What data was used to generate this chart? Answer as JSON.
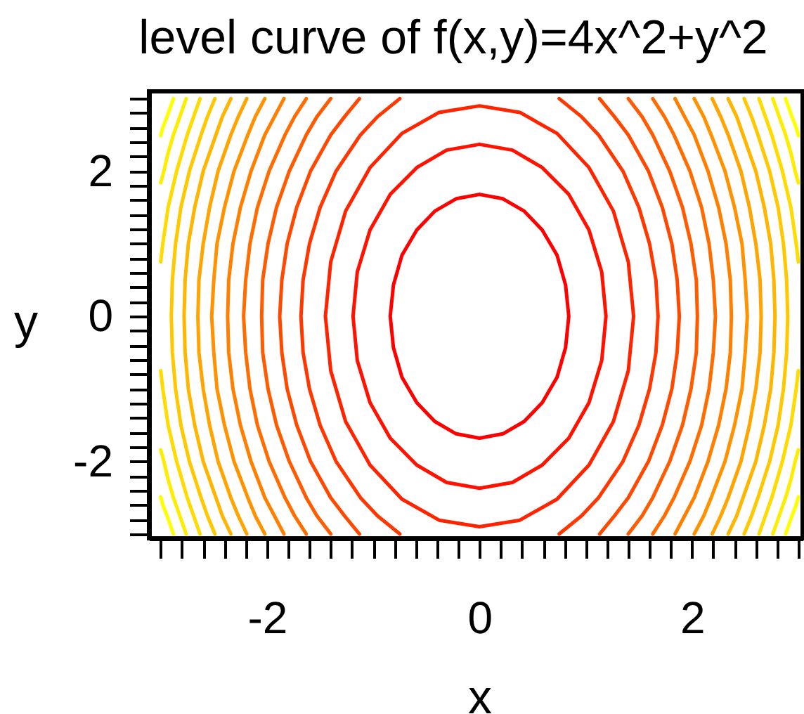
{
  "chart_data": {
    "type": "line",
    "title": "level curve of f(x,y)=4x^2+y^2",
    "xlabel": "x",
    "ylabel": "y",
    "xlim": [
      -3.11,
      3.04
    ],
    "ylim": [
      -3.06,
      3.1
    ],
    "xticks": [
      {
        "value": -3,
        "label": null
      },
      {
        "value": -2.8,
        "label": null
      },
      {
        "value": -2.6,
        "label": null
      },
      {
        "value": -2.4,
        "label": null
      },
      {
        "value": -2.2,
        "label": null
      },
      -2,
      {
        "value": -1.8,
        "label": null
      },
      {
        "value": -1.6,
        "label": null
      },
      {
        "value": -1.4,
        "label": null
      },
      {
        "value": -1.2,
        "label": null
      },
      {
        "value": -1,
        "label": null
      },
      {
        "value": -0.8,
        "label": null
      },
      {
        "value": -0.6,
        "label": null
      },
      {
        "value": -0.4,
        "label": null
      },
      {
        "value": -0.2,
        "label": null
      },
      0,
      {
        "value": 0.2,
        "label": null
      },
      {
        "value": 0.4,
        "label": null
      },
      {
        "value": 0.6,
        "label": null
      },
      {
        "value": 0.8,
        "label": null
      },
      {
        "value": 1,
        "label": null
      },
      {
        "value": 1.2,
        "label": null
      },
      {
        "value": 1.4,
        "label": null
      },
      {
        "value": 1.6,
        "label": null
      },
      {
        "value": 1.8,
        "label": null
      },
      2,
      {
        "value": 2.2,
        "label": null
      },
      {
        "value": 2.4,
        "label": null
      },
      {
        "value": 2.6,
        "label": null
      },
      {
        "value": 2.8,
        "label": null
      },
      {
        "value": 3,
        "label": null
      }
    ],
    "yticks": [
      {
        "value": -3,
        "label": null
      },
      {
        "value": -2.8,
        "label": null
      },
      {
        "value": -2.6,
        "label": null
      },
      {
        "value": -2.4,
        "label": null
      },
      {
        "value": -2.2,
        "label": null
      },
      -2,
      {
        "value": -1.8,
        "label": null
      },
      {
        "value": -1.6,
        "label": null
      },
      {
        "value": -1.4,
        "label": null
      },
      {
        "value": -1.2,
        "label": null
      },
      {
        "value": -1,
        "label": null
      },
      {
        "value": -0.8,
        "label": null
      },
      {
        "value": -0.6,
        "label": null
      },
      {
        "value": -0.4,
        "label": null
      },
      {
        "value": -0.2,
        "label": null
      },
      0,
      {
        "value": 0.2,
        "label": null
      },
      {
        "value": 0.4,
        "label": null
      },
      {
        "value": 0.6,
        "label": null
      },
      {
        "value": 0.8,
        "label": null
      },
      {
        "value": 1,
        "label": null
      },
      {
        "value": 1.2,
        "label": null
      },
      {
        "value": 1.4,
        "label": null
      },
      {
        "value": 1.6,
        "label": null
      },
      {
        "value": 1.8,
        "label": null
      },
      2,
      {
        "value": 2.2,
        "label": null
      },
      {
        "value": 2.4,
        "label": null
      },
      {
        "value": 2.6,
        "label": null
      },
      {
        "value": 2.8,
        "label": null
      },
      {
        "value": 3,
        "label": null
      }
    ],
    "series": [
      {
        "color": "#ff0000",
        "x": [
          0,
          0.22,
          0.42,
          0.59,
          0.73,
          0.81,
          0.84,
          0.81,
          0.73,
          0.59,
          0.42,
          0.22,
          0,
          null,
          0,
          -0.22,
          -0.42,
          -0.59,
          -0.73,
          -0.81,
          -0.84,
          -0.81,
          -0.73,
          -0.59,
          -0.42,
          -0.22,
          0
        ],
        "values": [
          -1.68,
          -1.62,
          -1.45,
          -1.19,
          -0.84,
          -0.43,
          0,
          0.43,
          0.84,
          1.19,
          1.45,
          1.62,
          1.68,
          null,
          -1.68,
          -1.62,
          -1.45,
          -1.19,
          -0.84,
          -0.43,
          0,
          0.43,
          0.84,
          1.19,
          1.45,
          1.62,
          1.68
        ]
      },
      {
        "color": "#ff1200",
        "x": [
          0,
          0.31,
          0.59,
          0.84,
          1.03,
          1.15,
          1.19,
          1.15,
          1.03,
          0.84,
          0.59,
          0.31,
          0,
          null,
          0,
          -0.31,
          -0.59,
          -0.84,
          -1.03,
          -1.15,
          -1.19,
          -1.15,
          -1.03,
          -0.84,
          -0.59,
          -0.31,
          0
        ],
        "values": [
          -2.37,
          -2.29,
          -2.05,
          -1.68,
          -1.19,
          -0.61,
          0,
          0.61,
          1.19,
          1.68,
          2.05,
          2.29,
          2.37,
          null,
          -2.37,
          -2.29,
          -2.05,
          -1.68,
          -1.19,
          -0.61,
          0,
          0.61,
          1.19,
          1.68,
          2.05,
          2.29,
          2.37
        ]
      },
      {
        "color": "#ff2400",
        "x": [
          0,
          0.38,
          0.73,
          1.03,
          1.26,
          1.4,
          1.45,
          1.4,
          1.26,
          1.03,
          0.73,
          0.38,
          0,
          null,
          0,
          -0.38,
          -0.73,
          -1.03,
          -1.26,
          -1.4,
          -1.45,
          -1.4,
          -1.26,
          -1.03,
          -0.73,
          -0.38,
          0
        ],
        "values": [
          -2.9,
          -2.81,
          -2.52,
          -2.05,
          -1.45,
          -0.75,
          0,
          0.75,
          1.45,
          2.05,
          2.52,
          2.81,
          2.9,
          null,
          -2.9,
          -2.81,
          -2.52,
          -2.05,
          -1.45,
          -0.75,
          0,
          0.75,
          1.45,
          2.05,
          2.52,
          2.81,
          2.9
        ]
      },
      {
        "color": "#ff3700",
        "x": [
          0.75,
          0.96,
          1.12,
          1.35,
          1.5,
          1.6,
          1.66,
          1.68,
          1.66,
          1.6,
          1.5,
          1.35,
          1.12,
          0.96,
          0.75,
          null,
          -0.75,
          -0.96,
          -1.12,
          -1.35,
          -1.5,
          -1.6,
          -1.66,
          -1.68,
          -1.66,
          -1.6,
          -1.5,
          -1.35,
          -1.12,
          -0.96,
          -0.75
        ],
        "values": [
          -3,
          -2.75,
          -2.5,
          -2,
          -1.5,
          -1,
          -0.5,
          0,
          0.5,
          1,
          1.5,
          2,
          2.5,
          2.75,
          3,
          null,
          -3,
          -2.75,
          -2.5,
          -2,
          -1.5,
          -1,
          -0.5,
          0,
          0.5,
          1,
          1.5,
          2,
          2.5,
          2.75,
          3
        ]
      },
      {
        "color": "#ff4900",
        "x": [
          1.13,
          1.27,
          1.4,
          1.59,
          1.72,
          1.81,
          1.86,
          1.88,
          1.86,
          1.81,
          1.72,
          1.59,
          1.4,
          1.27,
          1.13,
          null,
          -1.13,
          -1.27,
          -1.4,
          -1.59,
          -1.72,
          -1.81,
          -1.86,
          -1.88,
          -1.86,
          -1.81,
          -1.72,
          -1.59,
          -1.4,
          -1.27,
          -1.13
        ],
        "values": [
          -3,
          -2.75,
          -2.5,
          -2,
          -1.5,
          -1,
          -0.5,
          0,
          0.5,
          1,
          1.5,
          2,
          2.5,
          2.75,
          3,
          null,
          -3,
          -2.75,
          -2.5,
          -2,
          -1.5,
          -1,
          -0.5,
          0,
          0.5,
          1,
          1.5,
          2,
          2.5,
          2.75,
          3
        ]
      },
      {
        "color": "#ff5b00",
        "x": [
          1.4,
          1.53,
          1.63,
          1.79,
          1.91,
          1.99,
          2.04,
          2.05,
          2.04,
          1.99,
          1.91,
          1.79,
          1.63,
          1.53,
          1.4,
          null,
          -1.4,
          -1.53,
          -1.63,
          -1.79,
          -1.91,
          -1.99,
          -2.04,
          -2.05,
          -2.04,
          -1.99,
          -1.91,
          -1.79,
          -1.63,
          -1.53,
          -1.4
        ],
        "values": [
          -3,
          -2.75,
          -2.5,
          -2,
          -1.5,
          -1,
          -0.5,
          0,
          0.5,
          1,
          1.5,
          2,
          2.5,
          2.75,
          3,
          null,
          -3,
          -2.75,
          -2.5,
          -2,
          -1.5,
          -1,
          -0.5,
          0,
          0.5,
          1,
          1.5,
          2,
          2.5,
          2.75,
          3
        ]
      },
      {
        "color": "#ff6d00",
        "x": [
          1.63,
          1.74,
          1.83,
          1.98,
          2.09,
          2.16,
          2.2,
          2.22,
          2.2,
          2.16,
          2.09,
          1.98,
          1.83,
          1.74,
          1.63,
          null,
          -1.63,
          -1.74,
          -1.83,
          -1.98,
          -2.09,
          -2.16,
          -2.2,
          -2.22,
          -2.2,
          -2.16,
          -2.09,
          -1.98,
          -1.83,
          -1.74,
          -1.63
        ],
        "values": [
          -3,
          -2.75,
          -2.5,
          -2,
          -1.5,
          -1,
          -0.5,
          0,
          0.5,
          1,
          1.5,
          2,
          2.5,
          2.75,
          3,
          null,
          -3,
          -2.75,
          -2.5,
          -2,
          -1.5,
          -1,
          -0.5,
          0,
          0.5,
          1,
          1.5,
          2,
          2.5,
          2.75,
          3
        ]
      },
      {
        "color": "#ff8000",
        "x": [
          1.84,
          1.93,
          2.02,
          2.15,
          2.25,
          2.32,
          2.36,
          2.37,
          2.36,
          2.32,
          2.25,
          2.15,
          2.02,
          1.93,
          1.84,
          null,
          -1.84,
          -1.93,
          -2.02,
          -2.15,
          -2.25,
          -2.32,
          -2.36,
          -2.37,
          -2.36,
          -2.32,
          -2.25,
          -2.15,
          -2.02,
          -1.93,
          -1.84
        ],
        "values": [
          -3,
          -2.75,
          -2.5,
          -2,
          -1.5,
          -1,
          -0.5,
          0,
          0.5,
          1,
          1.5,
          2,
          2.5,
          2.75,
          3,
          null,
          -3,
          -2.75,
          -2.5,
          -2,
          -1.5,
          -1,
          -0.5,
          0,
          0.5,
          1,
          1.5,
          2,
          2.5,
          2.75,
          3
        ]
      },
      {
        "color": "#ff9200",
        "x": [
          2.02,
          2.11,
          2.18,
          2.31,
          2.4,
          2.47,
          2.5,
          2.52,
          2.5,
          2.47,
          2.4,
          2.31,
          2.18,
          2.11,
          2.02,
          null,
          -2.02,
          -2.11,
          -2.18,
          -2.31,
          -2.4,
          -2.47,
          -2.5,
          -2.52,
          -2.5,
          -2.47,
          -2.4,
          -2.31,
          -2.18,
          -2.11,
          -2.02
        ],
        "values": [
          -3,
          -2.75,
          -2.5,
          -2,
          -1.5,
          -1,
          -0.5,
          0,
          0.5,
          1,
          1.5,
          2,
          2.5,
          2.75,
          3,
          null,
          -3,
          -2.75,
          -2.5,
          -2,
          -1.5,
          -1,
          -0.5,
          0,
          0.5,
          1,
          1.5,
          2,
          2.5,
          2.75,
          3
        ]
      },
      {
        "color": "#ffa400",
        "x": [
          2.19,
          2.27,
          2.34,
          2.46,
          2.54,
          2.6,
          2.64,
          2.65,
          2.64,
          2.6,
          2.54,
          2.46,
          2.34,
          2.27,
          2.19,
          null,
          -2.19,
          -2.27,
          -2.34,
          -2.46,
          -2.54,
          -2.6,
          -2.64,
          -2.65,
          -2.64,
          -2.6,
          -2.54,
          -2.46,
          -2.34,
          -2.27,
          -2.19
        ],
        "values": [
          -3,
          -2.75,
          -2.5,
          -2,
          -1.5,
          -1,
          -0.5,
          0,
          0.5,
          1,
          1.5,
          2,
          2.5,
          2.75,
          3,
          null,
          -3,
          -2.75,
          -2.5,
          -2,
          -1.5,
          -1,
          -0.5,
          0,
          0.5,
          1,
          1.5,
          2,
          2.5,
          2.75,
          3
        ]
      },
      {
        "color": "#ffb600",
        "x": [
          2.34,
          2.42,
          2.48,
          2.6,
          2.68,
          2.74,
          2.77,
          2.78,
          2.77,
          2.74,
          2.68,
          2.6,
          2.48,
          2.42,
          2.34,
          null,
          -2.34,
          -2.42,
          -2.48,
          -2.6,
          -2.68,
          -2.74,
          -2.77,
          -2.78,
          -2.77,
          -2.74,
          -2.68,
          -2.6,
          -2.48,
          -2.42,
          -2.34
        ],
        "values": [
          -3,
          -2.75,
          -2.5,
          -2,
          -1.5,
          -1,
          -0.5,
          0,
          0.5,
          1,
          1.5,
          2,
          2.5,
          2.75,
          3,
          null,
          -3,
          -2.75,
          -2.5,
          -2,
          -1.5,
          -1,
          -0.5,
          0,
          0.5,
          1,
          1.5,
          2,
          2.5,
          2.75,
          3
        ]
      },
      {
        "color": "#ffc800",
        "x": [
          2.49,
          2.56,
          2.62,
          2.73,
          2.81,
          2.86,
          2.89,
          2.9,
          2.89,
          2.86,
          2.81,
          2.73,
          2.62,
          2.56,
          2.49,
          null,
          -2.49,
          -2.56,
          -2.62,
          -2.73,
          -2.81,
          -2.86,
          -2.89,
          -2.9,
          -2.89,
          -2.86,
          -2.81,
          -2.73,
          -2.62,
          -2.56,
          -2.49
        ],
        "values": [
          -3,
          -2.75,
          -2.5,
          -2,
          -1.5,
          -1,
          -0.5,
          0,
          0.5,
          1,
          1.5,
          2,
          2.5,
          2.75,
          3,
          null,
          -3,
          -2.75,
          -2.5,
          -2,
          -1.5,
          -1,
          -0.5,
          0,
          0.5,
          1,
          1.5,
          2,
          2.5,
          2.75,
          3
        ]
      },
      {
        "color": "#ffdb00",
        "x": [
          2.63,
          2.69,
          2.75,
          2.85,
          2.93,
          2.98,
          3,
          null,
          2.63,
          2.69,
          2.75,
          2.85,
          2.93,
          2.98,
          3,
          null,
          -2.63,
          -2.69,
          -2.75,
          -2.85,
          -2.93,
          -2.98,
          -3,
          null,
          -2.63,
          -2.69,
          -2.75,
          -2.85,
          -2.93,
          -2.98,
          -3
        ],
        "values": [
          3,
          2.75,
          2.5,
          2,
          1.5,
          1,
          0.75,
          null,
          -3,
          -2.75,
          -2.5,
          -2,
          -1.5,
          -1,
          -0.75,
          null,
          3,
          2.75,
          2.5,
          2,
          1.5,
          1,
          0.75,
          null,
          -3,
          -2.75,
          -2.5,
          -2,
          -1.5,
          -1,
          -0.75
        ]
      },
      {
        "color": "#ffed00",
        "x": [
          2.76,
          2.82,
          2.88,
          2.93,
          2.97,
          3,
          null,
          2.76,
          2.82,
          2.88,
          2.93,
          2.97,
          3,
          null,
          -2.76,
          -2.82,
          -2.88,
          -2.93,
          -2.97,
          -3,
          null,
          -2.76,
          -2.82,
          -2.88,
          -2.93,
          -2.97,
          -3
        ],
        "values": [
          3,
          2.75,
          2.5,
          2.25,
          2,
          1.84,
          null,
          -3,
          -2.75,
          -2.5,
          -2.25,
          -2,
          -1.84,
          null,
          3,
          2.75,
          2.5,
          2.25,
          2,
          1.84,
          null,
          -3,
          -2.75,
          -2.5,
          -2.25,
          -2,
          -1.84
        ]
      },
      {
        "color": "#ffff00",
        "x": [
          2.88,
          2.94,
          2.98,
          3,
          null,
          2.88,
          2.94,
          2.98,
          3,
          null,
          -2.88,
          -2.94,
          -2.98,
          -3,
          null,
          -2.88,
          -2.94,
          -2.98,
          -3
        ],
        "values": [
          3,
          2.75,
          2.6,
          2.49,
          null,
          -3,
          -2.75,
          -2.6,
          -2.49,
          null,
          3,
          2.75,
          2.6,
          2.49,
          null,
          -3,
          -2.75,
          -2.6,
          -2.49
        ]
      }
    ]
  }
}
